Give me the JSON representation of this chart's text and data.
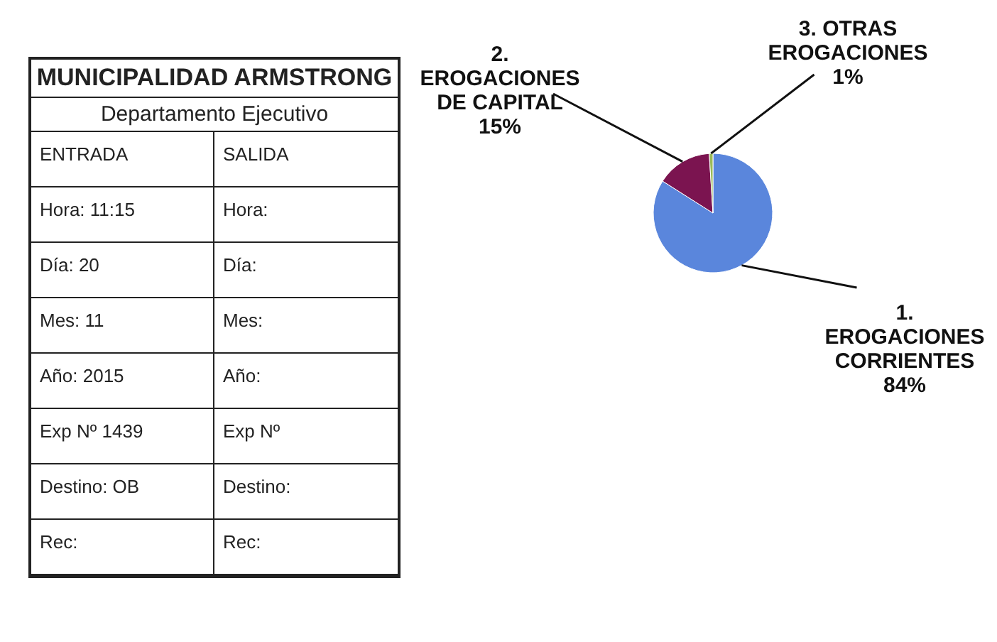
{
  "chart_data": {
    "type": "pie",
    "categories": [
      "1.\nEROGACIONES\nCORRIENTES",
      "2.\nEROGACIONES\nDE CAPITAL",
      "3. OTRAS\nEROGACIONES"
    ],
    "values": [
      84,
      15,
      1
    ],
    "colors": [
      "#5a86dc",
      "#7b1450",
      "#9bbb59"
    ],
    "value_labels": [
      "84%",
      "15%",
      "1%"
    ],
    "legend": false,
    "annotations": [
      "MUNICIPALIDAD ARMSTRONG",
      "Departamento Ejecutivo",
      "ENTRADA",
      "SALIDA",
      "Hora: 11:15",
      "Hora:",
      "Día: 20",
      "Día:",
      "Mes: 11",
      "Mes:",
      "Año: 2015",
      "Año:",
      "Exp Nº 1439",
      "Exp Nº",
      "Destino: OB",
      "Destino:",
      "Rec:",
      "Rec:"
    ]
  }
}
